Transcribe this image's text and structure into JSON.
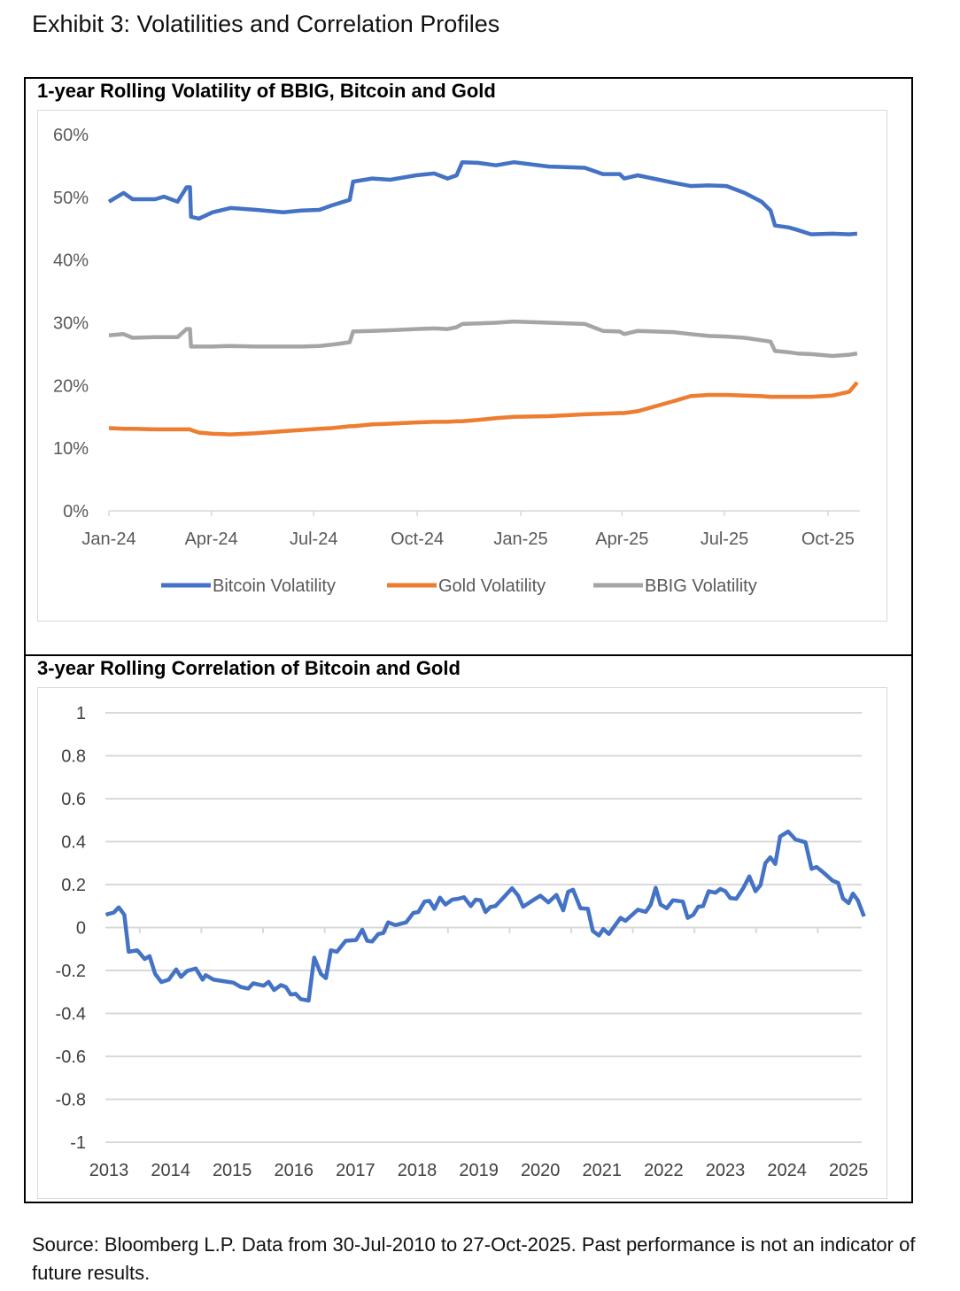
{
  "exhibit_title": "Exhibit 3: Volatilities and Correlation Profiles",
  "footer": "Source: Bloomberg L.P. Data from 30-Jul-2010 to 27-Oct-2025. Past performance is not an indicator of future results.",
  "chart_data": [
    {
      "type": "line",
      "title": "1-year Rolling Volatility of BBIG, Bitcoin and Gold",
      "xlabel": "",
      "ylabel": "",
      "ylim": [
        0,
        60
      ],
      "yticks": [
        "0%",
        "10%",
        "20%",
        "30%",
        "40%",
        "50%",
        "60%"
      ],
      "ytick_values": [
        0,
        10,
        20,
        30,
        40,
        50,
        60
      ],
      "xticks": [
        "Jan-24",
        "Apr-24",
        "Jul-24",
        "Oct-24",
        "Jan-25",
        "Apr-25",
        "Jul-25",
        "Oct-25"
      ],
      "xtick_dates": [
        "2024-01-01",
        "2024-04-01",
        "2024-07-01",
        "2024-10-01",
        "2025-01-01",
        "2025-04-01",
        "2025-07-01",
        "2025-10-01"
      ],
      "grid": false,
      "legend": "bottom",
      "x": [
        "2024-01-01",
        "2024-01-14",
        "2024-01-22",
        "2024-02-11",
        "2024-02-19",
        "2024-03-02",
        "2024-03-10",
        "2024-03-13",
        "2024-03-14",
        "2024-03-21",
        "2024-04-02",
        "2024-04-18",
        "2024-05-11",
        "2024-06-04",
        "2024-06-20",
        "2024-07-06",
        "2024-07-17",
        "2024-08-02",
        "2024-08-05",
        "2024-08-22",
        "2024-09-07",
        "2024-09-30",
        "2024-10-16",
        "2024-10-28",
        "2024-11-05",
        "2024-11-10",
        "2024-11-24",
        "2024-12-10",
        "2024-12-26",
        "2025-01-26",
        "2025-02-27",
        "2025-03-15",
        "2025-03-30",
        "2025-04-03",
        "2025-04-15",
        "2025-05-17",
        "2025-06-01",
        "2025-06-17",
        "2025-07-03",
        "2025-07-19",
        "2025-08-03",
        "2025-08-11",
        "2025-08-15",
        "2025-08-27",
        "2025-09-04",
        "2025-09-16",
        "2025-10-05",
        "2025-10-20",
        "2025-10-27"
      ],
      "series": [
        {
          "name": "Bitcoin Volatility",
          "color": "#4472C4",
          "values": [
            49.3,
            50.7,
            49.7,
            49.7,
            50.1,
            49.3,
            51.6,
            51.6,
            46.9,
            46.6,
            47.6,
            48.3,
            48.0,
            47.6,
            47.9,
            48.0,
            48.7,
            49.6,
            52.5,
            53.0,
            52.8,
            53.5,
            53.8,
            53.0,
            53.5,
            55.6,
            55.5,
            55.1,
            55.6,
            54.9,
            54.7,
            53.7,
            53.7,
            53.0,
            53.5,
            52.3,
            51.8,
            51.9,
            51.8,
            50.7,
            49.3,
            47.9,
            45.5,
            45.2,
            44.8,
            44.1,
            44.2,
            44.1,
            44.2
          ]
        },
        {
          "name": "Gold Volatility",
          "color": "#ED7D31",
          "values": [
            13.2,
            13.1,
            13.1,
            13.0,
            13.0,
            13.0,
            13.0,
            13.0,
            12.9,
            12.5,
            12.3,
            12.2,
            12.4,
            12.7,
            12.9,
            13.1,
            13.2,
            13.5,
            13.5,
            13.8,
            13.9,
            14.1,
            14.2,
            14.2,
            14.3,
            14.3,
            14.5,
            14.8,
            15.0,
            15.1,
            15.4,
            15.5,
            15.6,
            15.6,
            15.9,
            17.5,
            18.3,
            18.5,
            18.5,
            18.4,
            18.3,
            18.2,
            18.2,
            18.2,
            18.2,
            18.2,
            18.4,
            19.0,
            20.5
          ]
        },
        {
          "name": "BBIG Volatility",
          "color": "#A5A5A5",
          "values": [
            28.0,
            28.2,
            27.6,
            27.7,
            27.7,
            27.7,
            29.0,
            29.0,
            26.2,
            26.2,
            26.2,
            26.3,
            26.2,
            26.2,
            26.2,
            26.3,
            26.5,
            26.9,
            28.6,
            28.7,
            28.8,
            29.0,
            29.1,
            29.0,
            29.3,
            29.8,
            29.9,
            30.0,
            30.2,
            30.0,
            29.8,
            28.7,
            28.6,
            28.2,
            28.7,
            28.5,
            28.2,
            27.9,
            27.8,
            27.6,
            27.2,
            27.0,
            25.5,
            25.3,
            25.1,
            25.0,
            24.7,
            24.9,
            25.1
          ]
        }
      ]
    },
    {
      "type": "line",
      "title": "3-year Rolling Correlation of Bitcoin and Gold",
      "xlabel": "",
      "ylabel": "",
      "ylim": [
        -1,
        1
      ],
      "yticks": [
        "1",
        "0.8",
        "0.6",
        "0.4",
        "0.2",
        "0",
        "-0.2",
        "-0.4",
        "-0.6",
        "-0.8",
        "-1"
      ],
      "ytick_values": [
        1,
        0.8,
        0.6,
        0.4,
        0.2,
        0,
        -0.2,
        -0.4,
        -0.6,
        -0.8,
        -1
      ],
      "xticks": [
        "2013",
        "2014",
        "2015",
        "2016",
        "2017",
        "2018",
        "2019",
        "2020",
        "2021",
        "2022",
        "2023",
        "2024",
        "2025"
      ],
      "grid": true,
      "legend": "none",
      "series": [
        {
          "color": "#4472C4",
          "x": [
            2013.45,
            2013.58,
            2013.66,
            2013.75,
            2013.82,
            2013.96,
            2014.08,
            2014.16,
            2014.25,
            2014.35,
            2014.47,
            2014.59,
            2014.67,
            2014.77,
            2014.91,
            2015.02,
            2015.07,
            2015.2,
            2015.36,
            2015.52,
            2015.64,
            2015.76,
            2015.84,
            2016.01,
            2016.09,
            2016.18,
            2016.29,
            2016.37,
            2016.45,
            2016.53,
            2016.61,
            2016.74,
            2016.83,
            2016.94,
            2017.02,
            2017.1,
            2017.2,
            2017.34,
            2017.51,
            2017.61,
            2017.69,
            2017.77,
            2017.87,
            2017.95,
            2018.03,
            2018.15,
            2018.32,
            2018.44,
            2018.52,
            2018.62,
            2018.7,
            2018.78,
            2018.87,
            2018.96,
            2019.07,
            2019.17,
            2019.26,
            2019.37,
            2019.45,
            2019.53,
            2019.61,
            2019.69,
            2019.77,
            2019.9,
            2020.04,
            2020.14,
            2020.22,
            2020.38,
            2020.5,
            2020.63,
            2020.76,
            2020.87,
            2020.95,
            2021.03,
            2021.15,
            2021.27,
            2021.35,
            2021.45,
            2021.52,
            2021.61,
            2021.8,
            2021.88,
            2022.08,
            2022.21,
            2022.29,
            2022.37,
            2022.45,
            2022.55,
            2022.65,
            2022.81,
            2022.89,
            2022.98,
            2023.06,
            2023.14,
            2023.23,
            2023.34,
            2023.42,
            2023.5,
            2023.58,
            2023.68,
            2023.79,
            2023.89,
            2023.99,
            2024.07,
            2024.15,
            2024.23,
            2024.31,
            2024.39,
            2024.52,
            2024.64,
            2024.8,
            2024.9,
            2024.98,
            2025.08,
            2025.24,
            2025.33,
            2025.41,
            2025.5,
            2025.57,
            2025.65,
            2025.75
          ],
          "values": [
            0.06,
            0.07,
            0.094,
            0.059,
            -0.113,
            -0.106,
            -0.147,
            -0.133,
            -0.216,
            -0.254,
            -0.243,
            -0.195,
            -0.23,
            -0.202,
            -0.191,
            -0.243,
            -0.222,
            -0.243,
            -0.25,
            -0.257,
            -0.277,
            -0.284,
            -0.26,
            -0.271,
            -0.253,
            -0.291,
            -0.268,
            -0.277,
            -0.312,
            -0.309,
            -0.333,
            -0.34,
            -0.14,
            -0.216,
            -0.236,
            -0.106,
            -0.113,
            -0.062,
            -0.058,
            -0.01,
            -0.062,
            -0.065,
            -0.03,
            -0.026,
            0.024,
            0.011,
            0.024,
            0.068,
            0.072,
            0.121,
            0.124,
            0.087,
            0.139,
            0.107,
            0.13,
            0.134,
            0.141,
            0.1,
            0.13,
            0.127,
            0.072,
            0.096,
            0.1,
            0.139,
            0.183,
            0.148,
            0.097,
            0.127,
            0.148,
            0.117,
            0.152,
            0.08,
            0.166,
            0.176,
            0.09,
            0.087,
            -0.016,
            -0.037,
            -0.007,
            -0.03,
            0.045,
            0.031,
            0.083,
            0.073,
            0.107,
            0.185,
            0.107,
            0.09,
            0.127,
            0.121,
            0.045,
            0.059,
            0.097,
            0.1,
            0.169,
            0.162,
            0.18,
            0.169,
            0.137,
            0.134,
            0.183,
            0.238,
            0.169,
            0.197,
            0.3,
            0.327,
            0.296,
            0.424,
            0.447,
            0.41,
            0.397,
            0.273,
            0.282,
            0.259,
            0.218,
            0.208,
            0.135,
            0.114,
            0.158,
            0.127,
            0.052
          ]
        }
      ]
    }
  ]
}
